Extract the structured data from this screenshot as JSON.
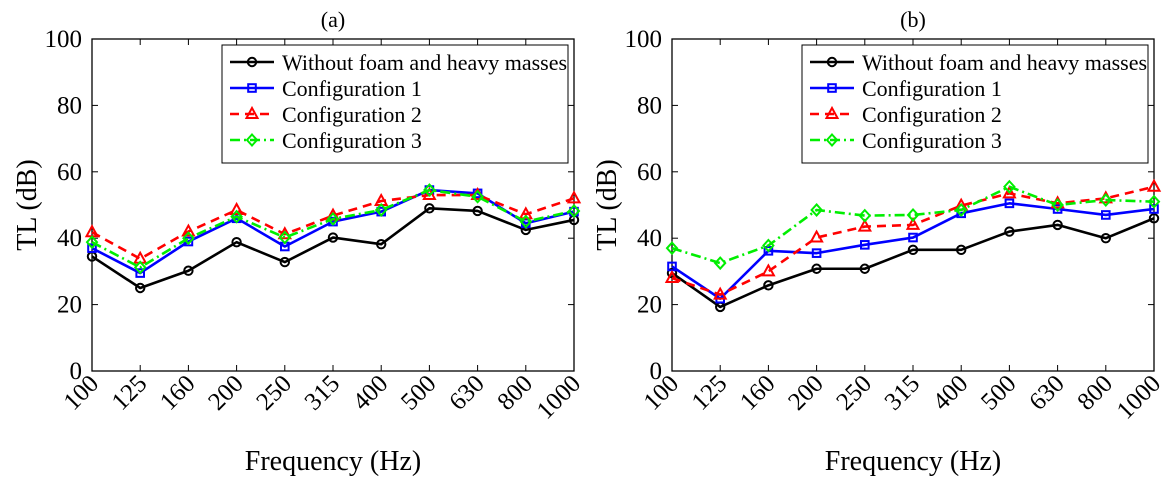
{
  "chart_data": [
    {
      "type": "line",
      "title": "(a)",
      "xlabel": "Frequency (Hz)",
      "ylabel": "TL (dB)",
      "categories": [
        "100",
        "125",
        "160",
        "200",
        "250",
        "315",
        "400",
        "500",
        "630",
        "800",
        "1000"
      ],
      "ylim": [
        0,
        100
      ],
      "yticks": [
        0,
        20,
        40,
        60,
        80,
        100
      ],
      "grid": false,
      "legend_position": "top-right",
      "series": [
        {
          "name": "Without foam and heavy masses",
          "color": "#000000",
          "marker": "circle",
          "dash": "solid",
          "values": [
            34.5,
            25.0,
            30.2,
            38.8,
            32.8,
            40.2,
            38.2,
            49.0,
            48.2,
            42.5,
            45.5
          ]
        },
        {
          "name": "Configuration 1",
          "color": "#0000ff",
          "marker": "square",
          "dash": "solid",
          "values": [
            37.0,
            29.5,
            39.0,
            46.0,
            37.5,
            45.0,
            48.0,
            54.5,
            53.5,
            44.5,
            48.0
          ]
        },
        {
          "name": "Configuration 2",
          "color": "#ff0000",
          "marker": "triangle",
          "dash": "dashed",
          "values": [
            41.8,
            33.8,
            42.0,
            48.5,
            41.2,
            46.8,
            51.2,
            53.0,
            53.0,
            47.2,
            52.0
          ]
        },
        {
          "name": "Configuration 3",
          "color": "#00ee00",
          "marker": "diamond",
          "dash": "dashdot",
          "values": [
            38.8,
            31.2,
            40.0,
            46.5,
            40.2,
            45.8,
            48.5,
            54.5,
            52.5,
            45.0,
            48.2
          ]
        }
      ]
    },
    {
      "type": "line",
      "title": "(b)",
      "xlabel": "Frequency (Hz)",
      "ylabel": "TL (dB)",
      "categories": [
        "100",
        "125",
        "160",
        "200",
        "250",
        "315",
        "400",
        "500",
        "630",
        "800",
        "1000"
      ],
      "ylim": [
        0,
        100
      ],
      "yticks": [
        0,
        20,
        40,
        60,
        80,
        100
      ],
      "grid": false,
      "legend_position": "top-right",
      "series": [
        {
          "name": "Without foam and heavy masses",
          "color": "#000000",
          "marker": "circle",
          "dash": "solid",
          "values": [
            29.5,
            19.3,
            25.8,
            30.8,
            30.8,
            36.5,
            36.5,
            42.0,
            44.0,
            40.0,
            46.0
          ]
        },
        {
          "name": "Configuration 1",
          "color": "#0000ff",
          "marker": "square",
          "dash": "solid",
          "values": [
            31.5,
            21.8,
            36.2,
            35.5,
            38.0,
            40.2,
            47.5,
            50.5,
            48.8,
            47.0,
            48.8
          ]
        },
        {
          "name": "Configuration 2",
          "color": "#ff0000",
          "marker": "triangle",
          "dash": "dashed",
          "values": [
            28.0,
            23.0,
            30.0,
            40.2,
            43.5,
            44.0,
            49.8,
            53.5,
            50.5,
            52.0,
            55.5
          ]
        },
        {
          "name": "Configuration 3",
          "color": "#00ee00",
          "marker": "diamond",
          "dash": "dashdot",
          "values": [
            37.0,
            32.5,
            37.8,
            48.5,
            46.8,
            47.0,
            48.5,
            55.5,
            50.0,
            51.5,
            51.0
          ]
        }
      ]
    }
  ]
}
